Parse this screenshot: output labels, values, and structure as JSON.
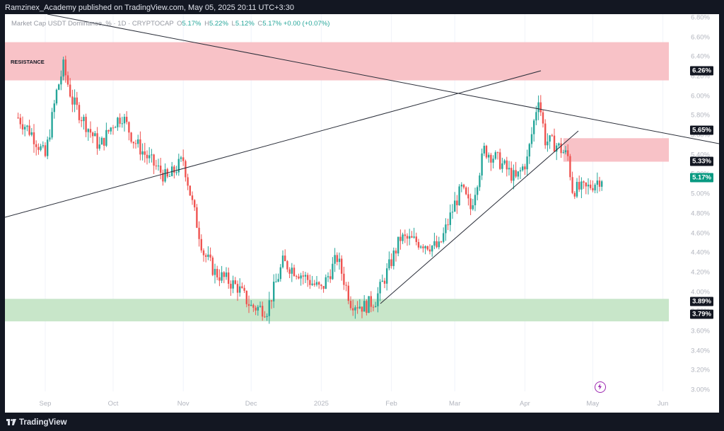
{
  "publisher_line": "Ramzinex_Academy published on TradingView.com, May 05, 2025 20:11 UTC+3:30",
  "legend": {
    "symbol": "Market Cap USDT Dominance, % · 1D · CRYPTOCAP",
    "open_label": "O",
    "open": "5.17%",
    "high_label": "H",
    "high": "5.22%",
    "low_label": "L",
    "low": "5.12%",
    "close_label": "C",
    "close": "5.17%",
    "change": "+0.00 (+0.07%)"
  },
  "resistance_label": "RESISTANCE",
  "price_axis": [
    "6.80%",
    "6.60%",
    "6.40%",
    "6.20%",
    "6.00%",
    "5.80%",
    "5.60%",
    "5.40%",
    "5.20%",
    "5.00%",
    "4.80%",
    "4.60%",
    "4.40%",
    "4.20%",
    "4.00%",
    "3.80%",
    "3.60%",
    "3.40%",
    "3.20%",
    "3.00%"
  ],
  "badges": [
    {
      "text": "6.26%",
      "style": "dark"
    },
    {
      "text": "5.65%",
      "style": "dark"
    },
    {
      "text": "5.33%",
      "style": "dark"
    },
    {
      "text": "5.17%",
      "style": "green"
    },
    {
      "text": "3.89%",
      "style": "dark"
    },
    {
      "text": "3.79%",
      "style": "dark"
    }
  ],
  "time_axis": [
    "Sep",
    "Oct",
    "Nov",
    "Dec",
    "2025",
    "Feb",
    "Mar",
    "Apr",
    "May",
    "Jun"
  ],
  "footer_brand": "TradingView",
  "colors": {
    "up": "#26a69a",
    "down": "#ef5350",
    "resistance_zone": "#f8c2c7",
    "support_zone": "#c8e6c9",
    "badge_dark": "#131722",
    "badge_green": "#089981"
  },
  "chart_data": {
    "type": "candlestick",
    "title": "Market Cap USDT Dominance, % · 1D · CRYPTOCAP",
    "ylim": [
      3.0,
      6.8
    ],
    "x_ticks": [
      "Sep",
      "Oct",
      "Nov",
      "Dec",
      "2025",
      "Feb",
      "Mar",
      "Apr",
      "May",
      "Jun"
    ],
    "zones": [
      {
        "name": "RESISTANCE",
        "from": 6.16,
        "to": 6.55
      },
      {
        "from": 5.33,
        "to": 5.57
      },
      {
        "from": 3.7,
        "to": 3.93
      }
    ],
    "close_path": [
      [
        "2024-08-20",
        5.78
      ],
      [
        "2024-08-26",
        5.62
      ],
      [
        "2024-09-01",
        5.38
      ],
      [
        "2024-09-06",
        6.04
      ],
      [
        "2024-09-09",
        6.3
      ],
      [
        "2024-09-13",
        5.95
      ],
      [
        "2024-09-18",
        5.75
      ],
      [
        "2024-09-25",
        5.48
      ],
      [
        "2024-10-01",
        5.72
      ],
      [
        "2024-10-05",
        5.8
      ],
      [
        "2024-10-10",
        5.55
      ],
      [
        "2024-10-17",
        5.35
      ],
      [
        "2024-10-25",
        5.15
      ],
      [
        "2024-11-01",
        5.35
      ],
      [
        "2024-11-05",
        4.9
      ],
      [
        "2024-11-10",
        4.4
      ],
      [
        "2024-11-15",
        4.2
      ],
      [
        "2024-11-25",
        4.05
      ],
      [
        "2024-12-01",
        3.85
      ],
      [
        "2024-12-08",
        3.82
      ],
      [
        "2024-12-15",
        4.3
      ],
      [
        "2024-12-22",
        4.2
      ],
      [
        "2025-01-01",
        4.02
      ],
      [
        "2025-01-08",
        4.35
      ],
      [
        "2025-01-14",
        3.9
      ],
      [
        "2025-01-20",
        3.85
      ],
      [
        "2025-01-25",
        3.92
      ],
      [
        "2025-01-30",
        4.2
      ],
      [
        "2025-02-05",
        4.55
      ],
      [
        "2025-02-15",
        4.5
      ],
      [
        "2025-02-22",
        4.45
      ],
      [
        "2025-03-01",
        4.9
      ],
      [
        "2025-03-04",
        5.05
      ],
      [
        "2025-03-08",
        4.85
      ],
      [
        "2025-03-14",
        5.45
      ],
      [
        "2025-03-20",
        5.35
      ],
      [
        "2025-03-28",
        5.15
      ],
      [
        "2025-04-02",
        5.35
      ],
      [
        "2025-04-07",
        6.0
      ],
      [
        "2025-04-10",
        5.55
      ],
      [
        "2025-04-15",
        5.5
      ],
      [
        "2025-04-20",
        5.38
      ],
      [
        "2025-04-22",
        5.05
      ],
      [
        "2025-04-28",
        5.05
      ],
      [
        "2025-05-05",
        5.17
      ]
    ]
  }
}
